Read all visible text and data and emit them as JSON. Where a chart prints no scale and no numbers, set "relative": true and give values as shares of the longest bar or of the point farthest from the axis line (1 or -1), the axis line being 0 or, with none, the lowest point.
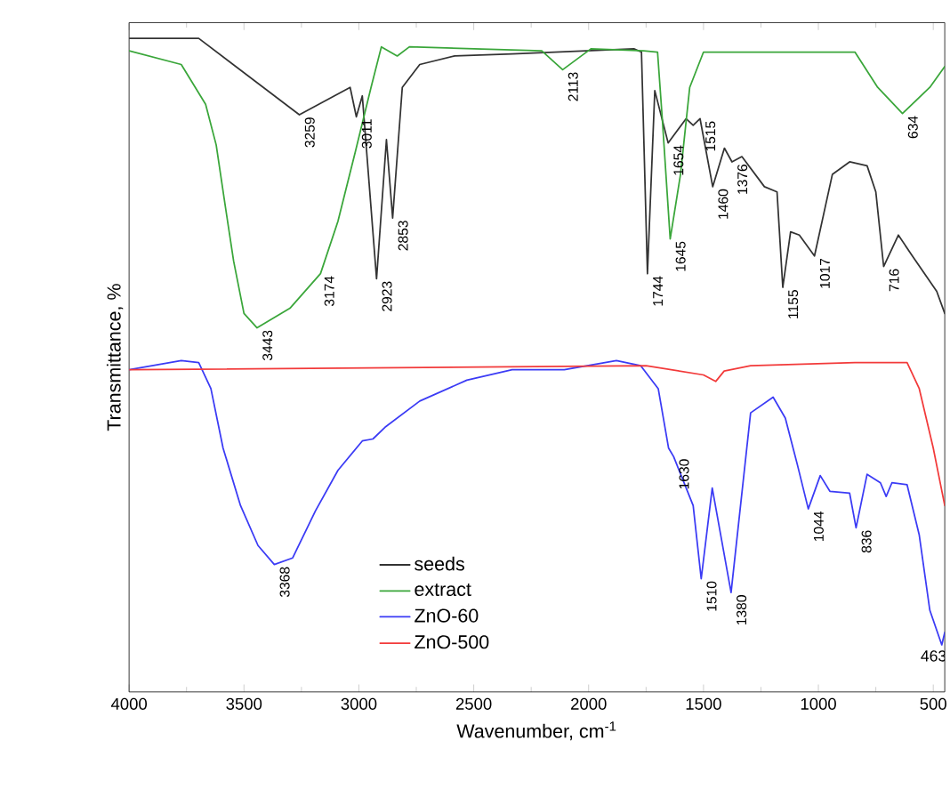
{
  "chart_data": {
    "type": "line",
    "relative": true,
    "xlabel": "Wavenumber, cm$^{-1}$",
    "ylabel": "Transmittance, %",
    "xlim": [
      4000,
      450
    ],
    "xticks": [
      4000,
      3500,
      3000,
      2500,
      2000,
      1500,
      1000,
      500
    ],
    "legend": "bottom",
    "marker": "none",
    "line_style": "solid",
    "x": [
      4000,
      3697,
      3259,
      3038,
      3011,
      2985,
      2923,
      2880,
      2853,
      2811,
      2735,
      2583,
      2333,
      1803,
      1770,
      1744,
      1712,
      1654,
      1576,
      1545,
      1515,
      1460,
      1409,
      1376,
      1333,
      1235,
      1180,
      1155,
      1121,
      1083,
      1017,
      939,
      864,
      788,
      750,
      716,
      652,
      591,
      485,
      450
    ],
    "series": [
      {
        "name": "seeds",
        "color": "#333333",
        "values": [
          1.0,
          1.0,
          0.883,
          0.925,
          0.88,
          0.912,
          0.632,
          0.845,
          0.725,
          0.925,
          0.96,
          0.973,
          0.976,
          0.984,
          0.979,
          0.64,
          0.92,
          0.84,
          0.877,
          0.867,
          0.877,
          0.773,
          0.832,
          0.811,
          0.819,
          0.773,
          0.765,
          0.619,
          0.704,
          0.699,
          0.667,
          0.792,
          0.811,
          0.805,
          0.765,
          0.651,
          0.699,
          0.667,
          0.613,
          0.579
        ]
      },
      {
        "name": "extract",
        "color": "#3aa63a",
        "x": [
          4000,
          3773,
          3667,
          3621,
          3583,
          3545,
          3500,
          3443,
          3300,
          3167,
          3091,
          3015,
          2947,
          2902,
          2833,
          2780,
          2204,
          2113,
          1990,
          1760,
          1700,
          1680,
          1645,
          1600,
          1560,
          1500,
          841,
          742,
          634,
          515,
          450
        ],
        "values": [
          0.981,
          0.96,
          0.899,
          0.837,
          0.747,
          0.659,
          0.579,
          0.557,
          0.587,
          0.64,
          0.72,
          0.827,
          0.925,
          0.987,
          0.973,
          0.987,
          0.981,
          0.952,
          0.984,
          0.981,
          0.979,
          0.88,
          0.693,
          0.792,
          0.925,
          0.979,
          0.979,
          0.925,
          0.885,
          0.925,
          0.957
        ]
      },
      {
        "name": "ZnO-60",
        "color": "#3b3bf5",
        "x": [
          4000,
          3773,
          3697,
          3644,
          3591,
          3515,
          3439,
          3368,
          3288,
          3189,
          3091,
          2985,
          2939,
          2886,
          2735,
          2530,
          2333,
          2106,
          1879,
          1773,
          1697,
          1652,
          1630,
          1545,
          1510,
          1462,
          1380,
          1295,
          1197,
          1144,
          1091,
          1044,
          992,
          950,
          864,
          836,
          788,
          730,
          705,
          680,
          614,
          561,
          515,
          463,
          450
        ],
        "values": [
          0.493,
          0.507,
          0.504,
          0.464,
          0.373,
          0.285,
          0.224,
          0.195,
          0.205,
          0.277,
          0.339,
          0.384,
          0.387,
          0.405,
          0.445,
          0.477,
          0.493,
          0.493,
          0.507,
          0.499,
          0.464,
          0.373,
          0.36,
          0.285,
          0.173,
          0.312,
          0.152,
          0.427,
          0.451,
          0.419,
          0.347,
          0.28,
          0.331,
          0.307,
          0.304,
          0.251,
          0.333,
          0.32,
          0.299,
          0.32,
          0.317,
          0.24,
          0.125,
          0.072,
          0.091
        ]
      },
      {
        "name": "ZnO-500",
        "color": "#f23a3a",
        "x": [
          4000,
          1750,
          1500,
          1447,
          1410,
          1295,
          841,
          614,
          561,
          500,
          450
        ],
        "values": [
          0.493,
          0.499,
          0.485,
          0.475,
          0.491,
          0.499,
          0.504,
          0.504,
          0.464,
          0.373,
          0.285
        ]
      }
    ],
    "annotations": [
      {
        "text": "3259",
        "x": 3259,
        "y": 0.883
      },
      {
        "text": "3011",
        "x": 3011,
        "y": 0.88
      },
      {
        "text": "3174",
        "x": 3174,
        "y": 0.64
      },
      {
        "text": "2923",
        "x": 2923,
        "y": 0.632
      },
      {
        "text": "2853",
        "x": 2853,
        "y": 0.725
      },
      {
        "text": "2113",
        "x": 2113,
        "y": 0.952
      },
      {
        "text": "1744",
        "x": 1744,
        "y": 0.64
      },
      {
        "text": "1654",
        "x": 1654,
        "y": 0.84
      },
      {
        "text": "1645",
        "x": 1645,
        "y": 0.693
      },
      {
        "text": "1515",
        "x": 1515,
        "y": 0.877
      },
      {
        "text": "1460",
        "x": 1460,
        "y": 0.773
      },
      {
        "text": "1376",
        "x": 1376,
        "y": 0.811
      },
      {
        "text": "1155",
        "x": 1155,
        "y": 0.619
      },
      {
        "text": "1017",
        "x": 1017,
        "y": 0.667
      },
      {
        "text": "716",
        "x": 716,
        "y": 0.651
      },
      {
        "text": "634",
        "x": 634,
        "y": 0.885
      },
      {
        "text": "3443",
        "x": 3443,
        "y": 0.557
      },
      {
        "text": "3368",
        "x": 3368,
        "y": 0.195
      },
      {
        "text": "1630",
        "x": 1630,
        "y": 0.36
      },
      {
        "text": "1510",
        "x": 1510,
        "y": 0.173
      },
      {
        "text": "1380",
        "x": 1380,
        "y": 0.152
      },
      {
        "text": "1044",
        "x": 1044,
        "y": 0.28
      },
      {
        "text": "836",
        "x": 836,
        "y": 0.251
      },
      {
        "text": "463",
        "x": 463,
        "y": 0.072
      }
    ]
  }
}
